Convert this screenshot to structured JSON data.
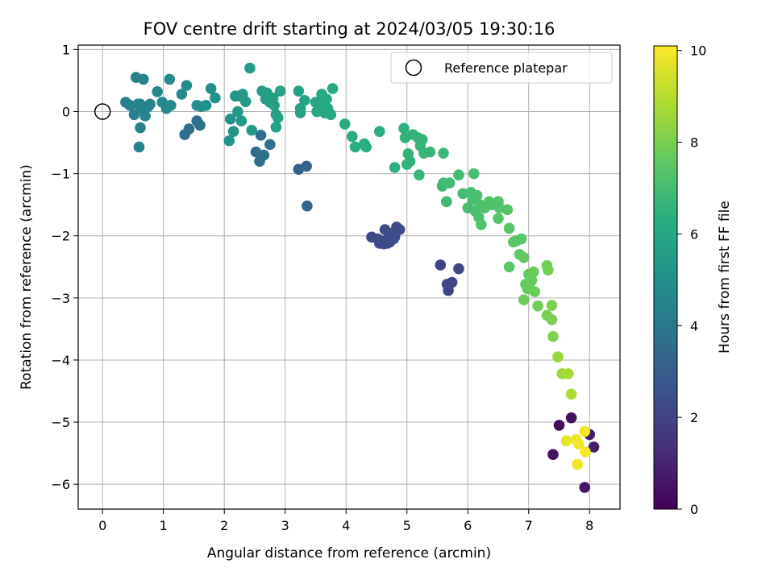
{
  "chart_data": {
    "type": "scatter",
    "title": "FOV centre drift starting at 2024/03/05 19:30:16",
    "xlabel": "Angular distance from reference (arcmin)",
    "ylabel": "Rotation from reference (arcmin)",
    "xlim": [
      -0.4,
      8.5
    ],
    "ylim": [
      -6.4,
      1.07
    ],
    "xticks": [
      0,
      1,
      2,
      3,
      4,
      5,
      6,
      7,
      8
    ],
    "xtick_labels": [
      "0",
      "1",
      "2",
      "3",
      "4",
      "5",
      "6",
      "7",
      "8"
    ],
    "yticks": [
      1,
      0,
      -1,
      -2,
      -3,
      -4,
      -5,
      -6
    ],
    "ytick_labels": [
      "1",
      "0",
      "−1",
      "−2",
      "−3",
      "−4",
      "−5",
      "−6"
    ],
    "grid": true,
    "legend": {
      "position": "top-right",
      "entries": [
        "Reference platepar"
      ]
    },
    "colormap": "viridis",
    "colorbar": {
      "label": "Hours from first FF file",
      "range": [
        0,
        10.1
      ],
      "ticks": [
        0,
        2,
        4,
        6,
        8,
        10
      ],
      "tick_labels": [
        "0",
        "2",
        "4",
        "6",
        "8",
        "10"
      ]
    },
    "reference_point": {
      "x": 0,
      "y": 0,
      "name": "Reference platepar"
    },
    "points": [
      [
        7.5,
        -5.05,
        0.3
      ],
      [
        7.7,
        -4.93,
        0.4
      ],
      [
        7.4,
        -5.52,
        0.5
      ],
      [
        7.92,
        -6.05,
        0.6
      ],
      [
        8.0,
        -5.2,
        0.8
      ],
      [
        8.07,
        -5.4,
        0.9
      ],
      [
        5.55,
        -2.47,
        2.0
      ],
      [
        5.66,
        -2.78,
        2.1
      ],
      [
        5.68,
        -2.88,
        2.2
      ],
      [
        5.74,
        -2.75,
        2.1
      ],
      [
        5.85,
        -2.53,
        2.2
      ],
      [
        4.42,
        -2.02,
        2.2
      ],
      [
        4.52,
        -2.05,
        2.3
      ],
      [
        4.58,
        -2.08,
        2.25
      ],
      [
        4.64,
        -1.9,
        2.3
      ],
      [
        4.7,
        -2.04,
        2.35
      ],
      [
        4.75,
        -1.96,
        2.3
      ],
      [
        4.78,
        -2.05,
        2.4
      ],
      [
        4.62,
        -2.13,
        2.3
      ],
      [
        4.68,
        -2.12,
        2.35
      ],
      [
        4.72,
        -2.1,
        2.3
      ],
      [
        4.8,
        -2.02,
        2.4
      ],
      [
        4.83,
        -1.86,
        2.3
      ],
      [
        4.88,
        -1.9,
        2.35
      ],
      [
        4.55,
        -2.12,
        2.3
      ],
      [
        4.72,
        -1.97,
        2.35
      ],
      [
        3.22,
        -0.93,
        3.2
      ],
      [
        3.35,
        -0.88,
        3.25
      ],
      [
        3.36,
        -1.52,
        3.3
      ],
      [
        1.35,
        -0.37,
        3.6
      ],
      [
        1.42,
        -0.28,
        3.65
      ],
      [
        1.55,
        -0.15,
        3.7
      ],
      [
        1.6,
        -0.22,
        3.75
      ],
      [
        2.52,
        -0.65,
        3.6
      ],
      [
        2.58,
        -0.8,
        3.65
      ],
      [
        2.6,
        -0.38,
        3.6
      ],
      [
        2.65,
        -0.7,
        3.7
      ],
      [
        2.75,
        -0.53,
        3.75
      ],
      [
        0.38,
        0.15,
        4.2
      ],
      [
        0.45,
        0.1,
        4.3
      ],
      [
        0.55,
        0.55,
        4.4
      ],
      [
        0.52,
        -0.05,
        4.35
      ],
      [
        0.58,
        0.12,
        4.35
      ],
      [
        0.6,
        -0.57,
        4.4
      ],
      [
        0.62,
        -0.26,
        4.4
      ],
      [
        0.65,
        0.05,
        4.45
      ],
      [
        0.67,
        0.52,
        4.5
      ],
      [
        0.7,
        -0.07,
        4.45
      ],
      [
        0.75,
        0.08,
        4.5
      ],
      [
        0.78,
        0.12,
        4.5
      ],
      [
        0.62,
        0.12,
        4.5
      ],
      [
        0.68,
        0.02,
        4.55
      ],
      [
        0.9,
        0.32,
        4.6
      ],
      [
        0.98,
        0.15,
        4.6
      ],
      [
        1.05,
        0.05,
        4.7
      ],
      [
        1.12,
        0.1,
        4.7
      ],
      [
        1.1,
        0.52,
        4.75
      ],
      [
        1.3,
        0.28,
        4.8
      ],
      [
        1.38,
        0.42,
        4.8
      ],
      [
        1.55,
        0.1,
        4.9
      ],
      [
        1.62,
        0.08,
        4.95
      ],
      [
        1.7,
        0.1,
        5.0
      ],
      [
        1.78,
        0.37,
        5.0
      ],
      [
        1.85,
        0.22,
        5.1
      ],
      [
        2.08,
        -0.47,
        5.1
      ],
      [
        2.1,
        -0.12,
        5.2
      ],
      [
        2.15,
        -0.32,
        5.25
      ],
      [
        2.18,
        0.25,
        5.3
      ],
      [
        2.25,
        0.25,
        5.3
      ],
      [
        2.22,
        0.0,
        5.35
      ],
      [
        2.28,
        -0.15,
        5.35
      ],
      [
        2.3,
        0.28,
        5.4
      ],
      [
        2.35,
        0.16,
        5.45
      ],
      [
        2.42,
        0.7,
        5.5
      ],
      [
        2.45,
        -0.3,
        5.5
      ],
      [
        2.62,
        0.33,
        5.55
      ],
      [
        2.68,
        0.2,
        5.6
      ],
      [
        2.7,
        0.3,
        5.6
      ],
      [
        2.75,
        0.15,
        5.65
      ],
      [
        2.8,
        0.22,
        5.65
      ],
      [
        2.82,
        0.1,
        5.7
      ],
      [
        2.85,
        -0.05,
        5.7
      ],
      [
        2.85,
        -0.25,
        5.75
      ],
      [
        2.88,
        -0.1,
        5.75
      ],
      [
        2.92,
        0.33,
        5.8
      ],
      [
        3.22,
        0.33,
        5.8
      ],
      [
        3.25,
        0.05,
        5.85
      ],
      [
        3.25,
        -0.02,
        5.85
      ],
      [
        3.32,
        0.18,
        5.9
      ],
      [
        3.5,
        0.15,
        5.9
      ],
      [
        3.52,
        0.0,
        5.95
      ],
      [
        3.56,
        0.08,
        5.95
      ],
      [
        3.6,
        0.28,
        6.0
      ],
      [
        3.62,
        0.12,
        6.0
      ],
      [
        3.65,
        -0.02,
        6.05
      ],
      [
        3.68,
        0.2,
        6.05
      ],
      [
        3.7,
        0.05,
        6.1
      ],
      [
        3.75,
        -0.05,
        6.1
      ],
      [
        3.78,
        0.37,
        6.15
      ],
      [
        3.98,
        -0.2,
        6.2
      ],
      [
        4.1,
        -0.4,
        6.25
      ],
      [
        4.15,
        -0.57,
        6.25
      ],
      [
        4.3,
        -0.52,
        6.3
      ],
      [
        4.33,
        -0.57,
        6.3
      ],
      [
        4.55,
        -0.32,
        6.35
      ],
      [
        4.8,
        -0.9,
        6.4
      ],
      [
        4.95,
        -0.27,
        6.45
      ],
      [
        4.97,
        -0.42,
        6.5
      ],
      [
        5.0,
        -0.85,
        6.5
      ],
      [
        5.02,
        -0.68,
        6.55
      ],
      [
        5.05,
        -0.8,
        6.55
      ],
      [
        5.1,
        -0.37,
        6.6
      ],
      [
        5.18,
        -0.42,
        6.6
      ],
      [
        5.2,
        -1.02,
        6.6
      ],
      [
        5.22,
        -0.55,
        6.65
      ],
      [
        5.25,
        -0.45,
        6.65
      ],
      [
        5.28,
        -0.67,
        6.7
      ],
      [
        5.38,
        -0.65,
        6.7
      ],
      [
        5.6,
        -0.67,
        6.75
      ],
      [
        5.58,
        -1.2,
        6.8
      ],
      [
        5.6,
        -1.15,
        6.85
      ],
      [
        5.65,
        -1.45,
        6.85
      ],
      [
        5.7,
        -1.15,
        6.9
      ],
      [
        5.85,
        -1.02,
        6.9
      ],
      [
        5.92,
        -1.32,
        6.95
      ],
      [
        6.0,
        -1.55,
        7.0
      ],
      [
        6.05,
        -1.3,
        7.0
      ],
      [
        6.08,
        -1.42,
        7.05
      ],
      [
        6.1,
        -1.0,
        7.05
      ],
      [
        6.12,
        -1.6,
        7.1
      ],
      [
        6.15,
        -1.35,
        7.1
      ],
      [
        6.18,
        -1.7,
        7.15
      ],
      [
        6.2,
        -1.5,
        7.15
      ],
      [
        6.22,
        -1.82,
        7.2
      ],
      [
        6.28,
        -1.55,
        7.2
      ],
      [
        6.35,
        -1.45,
        7.25
      ],
      [
        6.4,
        -1.5,
        7.25
      ],
      [
        6.5,
        -1.45,
        7.3
      ],
      [
        6.52,
        -1.55,
        7.3
      ],
      [
        6.5,
        -1.72,
        7.35
      ],
      [
        6.65,
        -1.58,
        7.35
      ],
      [
        6.68,
        -1.88,
        7.4
      ],
      [
        6.75,
        -2.1,
        7.45
      ],
      [
        6.8,
        -2.08,
        7.45
      ],
      [
        6.88,
        -2.05,
        7.5
      ],
      [
        6.68,
        -2.5,
        7.5
      ],
      [
        6.85,
        -2.3,
        7.55
      ],
      [
        6.92,
        -2.35,
        7.6
      ],
      [
        6.95,
        -2.78,
        7.6
      ],
      [
        6.98,
        -2.85,
        7.65
      ],
      [
        7.0,
        -2.62,
        7.65
      ],
      [
        7.02,
        -2.85,
        7.7
      ],
      [
        7.05,
        -2.72,
        7.7
      ],
      [
        7.08,
        -2.58,
        7.75
      ],
      [
        7.1,
        -2.9,
        7.75
      ],
      [
        6.92,
        -3.03,
        7.8
      ],
      [
        7.15,
        -3.13,
        7.85
      ],
      [
        7.3,
        -2.48,
        7.9
      ],
      [
        7.32,
        -2.55,
        7.9
      ],
      [
        7.3,
        -3.28,
        7.95
      ],
      [
        7.38,
        -3.12,
        8.0
      ],
      [
        7.38,
        -3.35,
        8.0
      ],
      [
        7.4,
        -3.62,
        8.1
      ],
      [
        7.48,
        -3.95,
        8.5
      ],
      [
        7.55,
        -4.22,
        8.6
      ],
      [
        7.65,
        -4.22,
        8.7
      ],
      [
        7.7,
        -4.55,
        8.8
      ],
      [
        7.62,
        -5.3,
        9.8
      ],
      [
        7.78,
        -5.28,
        9.85
      ],
      [
        7.8,
        -5.68,
        9.9
      ],
      [
        7.82,
        -5.35,
        9.9
      ],
      [
        7.92,
        -5.15,
        9.95
      ],
      [
        7.93,
        -5.48,
        10.0
      ]
    ]
  }
}
